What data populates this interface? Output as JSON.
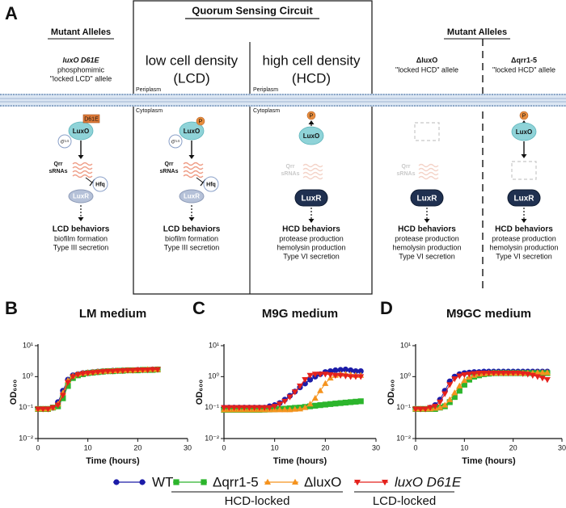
{
  "figure": {
    "panel_labels": [
      "A",
      "B",
      "C",
      "D"
    ]
  },
  "diagram": {
    "circuit_title": "Quorum Sensing Circuit",
    "membrane": {
      "periplasm": [
        "Periplasm",
        "Periplasm"
      ],
      "cytoplasm": [
        "Cytoplasm",
        "Cytoplasm"
      ]
    },
    "columns": [
      {
        "header": "Mutant Alleles",
        "allele": "luxO D61E",
        "description": [
          "phosphomimic",
          "\"locked LCD\" allele"
        ],
        "tag": "D61E",
        "luxo": "LuxO",
        "sigma": "σ⁵⁴",
        "qrr": [
          "Qrr",
          "sRNAs"
        ],
        "hfq": "Hfq",
        "luxr": "LuxR",
        "behaviors": {
          "title": "LCD behaviors",
          "items": [
            "biofilm formation",
            "Type III secretion"
          ]
        }
      },
      {
        "condition": [
          "low cell density",
          "(LCD)"
        ],
        "phospho": "P",
        "luxo": "LuxO",
        "sigma": "σ⁵⁴",
        "qrr": [
          "Qrr",
          "sRNAs"
        ],
        "hfq": "Hfq",
        "luxr": "LuxR",
        "behaviors": {
          "title": "LCD behaviors",
          "items": [
            "biofilm formation",
            "Type III secretion"
          ]
        }
      },
      {
        "condition": [
          "high cell density",
          "(HCD)"
        ],
        "phospho": "P",
        "luxo": "LuxO",
        "qrr": [
          "Qrr",
          "sRNAs"
        ],
        "luxr": "LuxR",
        "behaviors": {
          "title": "HCD behaviors",
          "items": [
            "protease production",
            "hemolysin production",
            "Type VI secretion"
          ]
        }
      },
      {
        "header": "Mutant Alleles",
        "allele": "ΔluxO",
        "description": [
          "\"locked HCD\" allele"
        ],
        "qrr": [
          "Qrr",
          "sRNAs"
        ],
        "luxr": "LuxR",
        "behaviors": {
          "title": "HCD behaviors",
          "items": [
            "protease production",
            "hemolysin production",
            "Type VI secretion"
          ]
        }
      },
      {
        "allele": "Δqrr1-5",
        "description": [
          "\"locked HCD\" allele"
        ],
        "phospho": "P",
        "luxo": "LuxO",
        "luxr": "LuxR",
        "behaviors": {
          "title": "HCD behaviors",
          "items": [
            "protease production",
            "hemolysin production",
            "Type VI secretion"
          ]
        }
      }
    ]
  },
  "legend": {
    "groups": [
      "HCD-locked",
      "LCD-locked"
    ]
  },
  "chart_data": [
    {
      "type": "line",
      "title": "LM medium",
      "xlabel": "Time (hours)",
      "ylabel": "OD₆₀₀",
      "yscale": "log",
      "xlim": [
        0,
        30
      ],
      "xticks": [
        0,
        10,
        20,
        30
      ],
      "ylim": [
        0.01,
        10
      ],
      "yticks": [
        {
          "value": 0.01,
          "label": "10⁻²"
        },
        {
          "value": 0.1,
          "label": "10⁻¹"
        },
        {
          "value": 1,
          "label": "10⁰"
        },
        {
          "value": 10,
          "label": "10¹"
        }
      ],
      "x": [
        0,
        1,
        2,
        3,
        4,
        5,
        6,
        7,
        8,
        9,
        10,
        11,
        12,
        13,
        14,
        15,
        16,
        17,
        18,
        19,
        20,
        21,
        22,
        23,
        24
      ],
      "series": [
        {
          "name": "WT",
          "color": "#1c1ca8",
          "marker": "circle",
          "values": [
            0.09,
            0.09,
            0.09,
            0.1,
            0.15,
            0.35,
            0.8,
            1.1,
            1.2,
            1.3,
            1.35,
            1.4,
            1.45,
            1.5,
            1.5,
            1.55,
            1.55,
            1.6,
            1.6,
            1.6,
            1.65,
            1.65,
            1.65,
            1.7,
            1.7
          ]
        },
        {
          "name": "Δqrr1-5",
          "color": "#2cb52c",
          "marker": "square",
          "values": [
            0.09,
            0.09,
            0.09,
            0.1,
            0.11,
            0.2,
            0.5,
            0.9,
            1.1,
            1.2,
            1.3,
            1.35,
            1.4,
            1.45,
            1.5,
            1.5,
            1.55,
            1.55,
            1.6,
            1.6,
            1.6,
            1.65,
            1.65,
            1.65,
            1.7
          ]
        },
        {
          "name": "ΔluxO",
          "color": "#f5931e",
          "marker": "triangle-up",
          "values": [
            0.09,
            0.09,
            0.09,
            0.1,
            0.13,
            0.3,
            0.75,
            1.05,
            1.2,
            1.3,
            1.35,
            1.4,
            1.45,
            1.5,
            1.5,
            1.55,
            1.55,
            1.6,
            1.6,
            1.6,
            1.65,
            1.65,
            1.7,
            1.7,
            1.7
          ]
        },
        {
          "name": "luxO D61E",
          "color": "#e4211c",
          "marker": "triangle-down",
          "values": [
            0.09,
            0.09,
            0.09,
            0.1,
            0.12,
            0.25,
            0.65,
            1.0,
            1.15,
            1.25,
            1.3,
            1.35,
            1.4,
            1.45,
            1.5,
            1.5,
            1.55,
            1.55,
            1.6,
            1.6,
            1.65,
            1.65,
            1.65,
            1.7,
            1.7
          ]
        }
      ]
    },
    {
      "type": "line",
      "title": "M9G medium",
      "xlabel": "Time (hours)",
      "ylabel": "OD₆₀₀",
      "yscale": "log",
      "xlim": [
        0,
        30
      ],
      "xticks": [
        0,
        10,
        20,
        30
      ],
      "ylim": [
        0.01,
        10
      ],
      "yticks": [
        {
          "value": 0.01,
          "label": "10⁻²"
        },
        {
          "value": 0.1,
          "label": "10⁻¹"
        },
        {
          "value": 1,
          "label": "10⁰"
        },
        {
          "value": 10,
          "label": "10¹"
        }
      ],
      "x": [
        0,
        1,
        2,
        3,
        4,
        5,
        6,
        7,
        8,
        9,
        10,
        11,
        12,
        13,
        14,
        15,
        16,
        17,
        18,
        19,
        20,
        21,
        22,
        23,
        24,
        25,
        26,
        27
      ],
      "series": [
        {
          "color": "#1c1ca8",
          "marker": "circle",
          "values": [
            0.1,
            0.1,
            0.1,
            0.1,
            0.1,
            0.1,
            0.1,
            0.1,
            0.1,
            0.11,
            0.12,
            0.14,
            0.18,
            0.24,
            0.33,
            0.45,
            0.6,
            0.8,
            1.0,
            1.2,
            1.4,
            1.5,
            1.6,
            1.65,
            1.7,
            1.6,
            1.5,
            1.5
          ]
        },
        {
          "color": "#2cb52c",
          "marker": "square",
          "values": [
            0.085,
            0.085,
            0.085,
            0.085,
            0.085,
            0.085,
            0.085,
            0.085,
            0.086,
            0.087,
            0.088,
            0.09,
            0.092,
            0.095,
            0.098,
            0.1,
            0.105,
            0.11,
            0.115,
            0.12,
            0.125,
            0.13,
            0.135,
            0.14,
            0.145,
            0.15,
            0.155,
            0.16
          ]
        },
        {
          "color": "#f5931e",
          "marker": "triangle-up",
          "values": [
            0.085,
            0.085,
            0.085,
            0.085,
            0.085,
            0.085,
            0.085,
            0.085,
            0.085,
            0.085,
            0.085,
            0.085,
            0.085,
            0.085,
            0.088,
            0.09,
            0.1,
            0.13,
            0.2,
            0.35,
            0.6,
            0.9,
            1.1,
            1.2,
            1.2,
            1.15,
            1.1,
            1.1
          ]
        },
        {
          "color": "#e4211c",
          "marker": "triangle-down",
          "values": [
            0.1,
            0.1,
            0.1,
            0.1,
            0.1,
            0.1,
            0.1,
            0.1,
            0.1,
            0.1,
            0.11,
            0.13,
            0.16,
            0.22,
            0.32,
            0.5,
            0.8,
            1.1,
            1.2,
            1.2,
            1.2,
            1.15,
            1.1,
            1.1,
            1.05,
            1.0,
            1.0,
            1.0
          ]
        }
      ]
    },
    {
      "type": "line",
      "title": "M9GC medium",
      "xlabel": "Time (hours)",
      "ylabel": "OD₆₀₀",
      "yscale": "log",
      "xlim": [
        0,
        30
      ],
      "xticks": [
        0,
        10,
        20,
        30
      ],
      "ylim": [
        0.01,
        10
      ],
      "yticks": [
        {
          "value": 0.01,
          "label": "10⁻²"
        },
        {
          "value": 0.1,
          "label": "10⁻¹"
        },
        {
          "value": 1,
          "label": "10⁰"
        },
        {
          "value": 10,
          "label": "10¹"
        }
      ],
      "x": [
        0,
        1,
        2,
        3,
        4,
        5,
        6,
        7,
        8,
        9,
        10,
        11,
        12,
        13,
        14,
        15,
        16,
        17,
        18,
        19,
        20,
        21,
        22,
        23,
        24,
        25,
        26,
        27
      ],
      "series": [
        {
          "color": "#1c1ca8",
          "marker": "circle",
          "values": [
            0.09,
            0.09,
            0.09,
            0.1,
            0.12,
            0.18,
            0.35,
            0.7,
            1.0,
            1.2,
            1.3,
            1.35,
            1.4,
            1.4,
            1.45,
            1.45,
            1.45,
            1.45,
            1.45,
            1.45,
            1.45,
            1.45,
            1.45,
            1.45,
            1.45,
            1.45,
            1.45,
            1.45
          ]
        },
        {
          "color": "#2cb52c",
          "marker": "square",
          "values": [
            0.09,
            0.09,
            0.09,
            0.09,
            0.09,
            0.1,
            0.11,
            0.15,
            0.22,
            0.35,
            0.55,
            0.8,
            1.0,
            1.1,
            1.2,
            1.25,
            1.3,
            1.3,
            1.3,
            1.3,
            1.3,
            1.3,
            1.3,
            1.3,
            1.3,
            1.3,
            1.3,
            1.3
          ]
        },
        {
          "color": "#f5931e",
          "marker": "triangle-up",
          "values": [
            0.09,
            0.09,
            0.09,
            0.09,
            0.095,
            0.1,
            0.12,
            0.18,
            0.3,
            0.5,
            0.75,
            0.95,
            1.1,
            1.2,
            1.25,
            1.3,
            1.3,
            1.3,
            1.3,
            1.3,
            1.3,
            1.3,
            1.3,
            1.3,
            1.3,
            1.35,
            1.35,
            1.35
          ]
        },
        {
          "color": "#e4211c",
          "marker": "triangle-down",
          "values": [
            0.09,
            0.09,
            0.09,
            0.1,
            0.11,
            0.15,
            0.28,
            0.55,
            0.85,
            1.05,
            1.15,
            1.2,
            1.25,
            1.3,
            1.3,
            1.3,
            1.3,
            1.3,
            1.3,
            1.3,
            1.3,
            1.3,
            1.25,
            1.2,
            1.1,
            1.0,
            0.9,
            0.8
          ]
        }
      ]
    }
  ]
}
